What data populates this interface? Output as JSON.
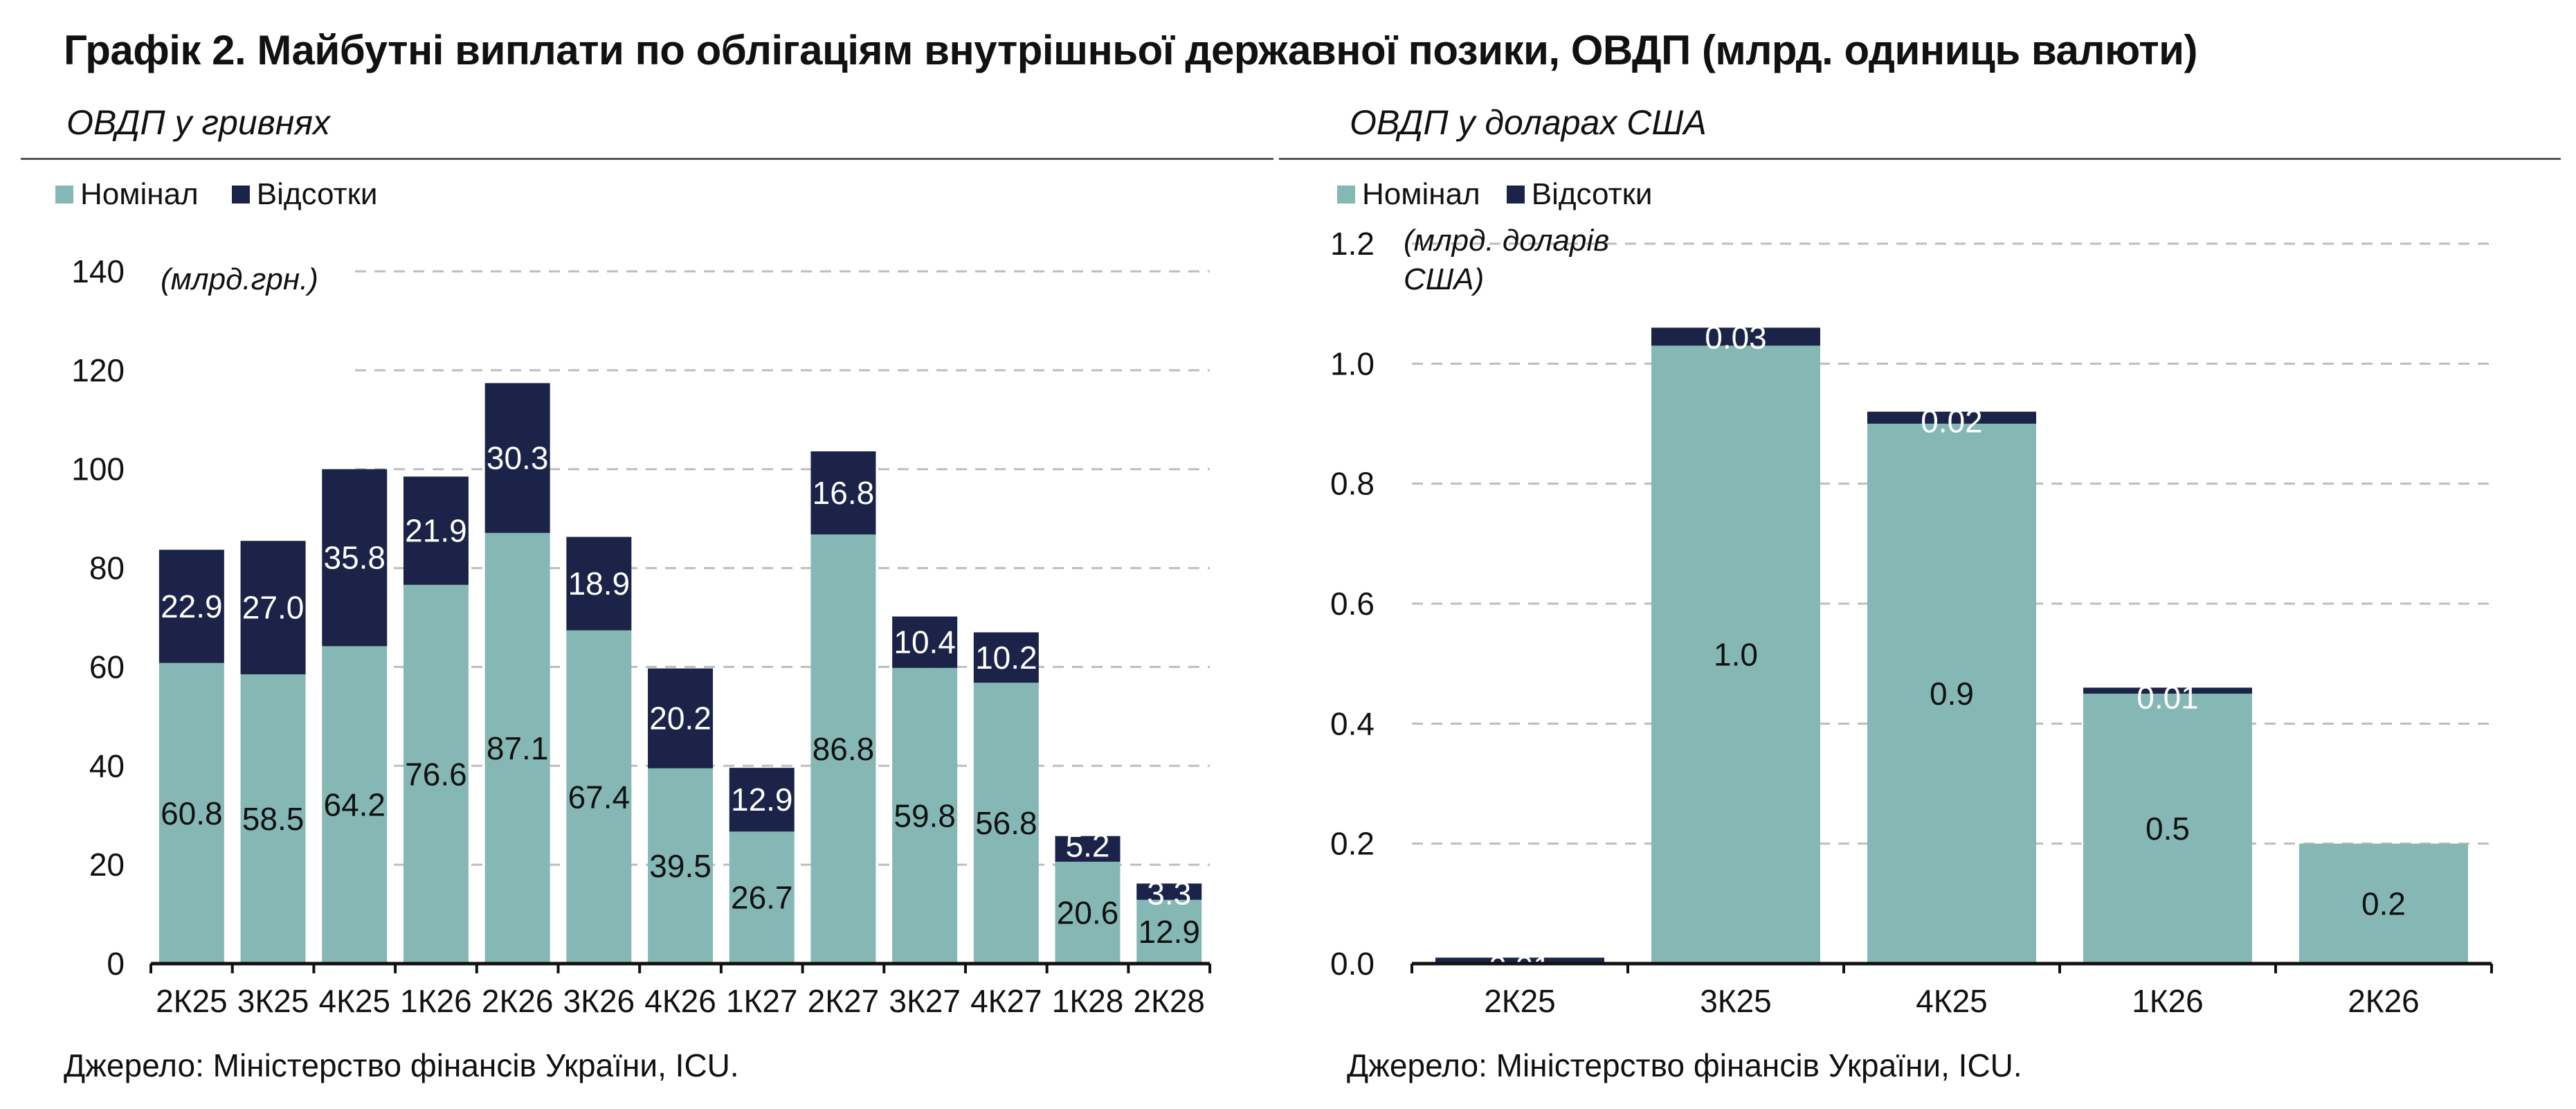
{
  "title": "Графік 2. Майбутні виплати по облігаціям внутрішньої державної позики, ОВДП (млрд. одиниць валюти)",
  "colors": {
    "nominal": "#85b8b4",
    "interest": "#1b2448",
    "grid": "#bdbdbd"
  },
  "chart_data": [
    {
      "type": "bar",
      "stacked": true,
      "subtitle": "ОВДП у гривнях",
      "unit_label": "(млрд.грн.)",
      "categories": [
        "2К25",
        "3К25",
        "4К25",
        "1К26",
        "2К26",
        "3К26",
        "4К26",
        "1К27",
        "2К27",
        "3К27",
        "4К27",
        "1К28",
        "2К28"
      ],
      "series": [
        {
          "name": "Номінал",
          "values": [
            60.8,
            58.5,
            64.2,
            76.6,
            87.1,
            67.4,
            39.5,
            26.7,
            86.8,
            59.8,
            56.8,
            20.6,
            12.9
          ]
        },
        {
          "name": "Відсотки",
          "values": [
            22.9,
            27.0,
            35.8,
            21.9,
            30.3,
            18.9,
            20.2,
            12.9,
            16.8,
            10.4,
            10.2,
            5.2,
            3.3
          ]
        }
      ],
      "labels": {
        "nominal": [
          "60.8",
          "58.5",
          "64.2",
          "76.6",
          "87.1",
          "67.4",
          "39.5",
          "26.7",
          "86.8",
          "59.8",
          "56.8",
          "20.6",
          "12.9"
        ],
        "interest": [
          "22.9",
          "27.0",
          "35.8",
          "21.9",
          "30.3",
          "18.9",
          "20.2",
          "12.9",
          "16.8",
          "10.4",
          "10.2",
          "5.2",
          "3.3"
        ]
      },
      "ylim": [
        0,
        140
      ],
      "yticks": [
        "0",
        "20",
        "40",
        "60",
        "80",
        "100",
        "120",
        "140"
      ],
      "grid": true,
      "legend": "top-left",
      "source": "Джерело: Міністерство фінансів України, ICU."
    },
    {
      "type": "bar",
      "stacked": true,
      "subtitle": "ОВДП у доларах США",
      "unit_label_lines": [
        "(млрд. доларів",
        "США)"
      ],
      "categories": [
        "2К25",
        "3К25",
        "4К25",
        "1К26",
        "2К26"
      ],
      "series": [
        {
          "name": "Номінал",
          "values": [
            0.0,
            1.03,
            0.9,
            0.45,
            0.2
          ]
        },
        {
          "name": "Відсотки",
          "values": [
            0.01,
            0.03,
            0.02,
            0.01,
            0.0
          ]
        }
      ],
      "labels": {
        "nominal": [
          "",
          "1.0",
          "0.9",
          "0.5",
          "0.2"
        ],
        "interest": [
          "0.01",
          "0.03",
          "0.02",
          "0.01",
          ""
        ]
      },
      "ylim": [
        0,
        1.2
      ],
      "yticks": [
        "0.0",
        "0.2",
        "0.4",
        "0.6",
        "0.8",
        "1.0",
        "1.2"
      ],
      "grid": true,
      "legend": "top-left",
      "source": "Джерело: Міністерство фінансів України, ICU."
    }
  ]
}
